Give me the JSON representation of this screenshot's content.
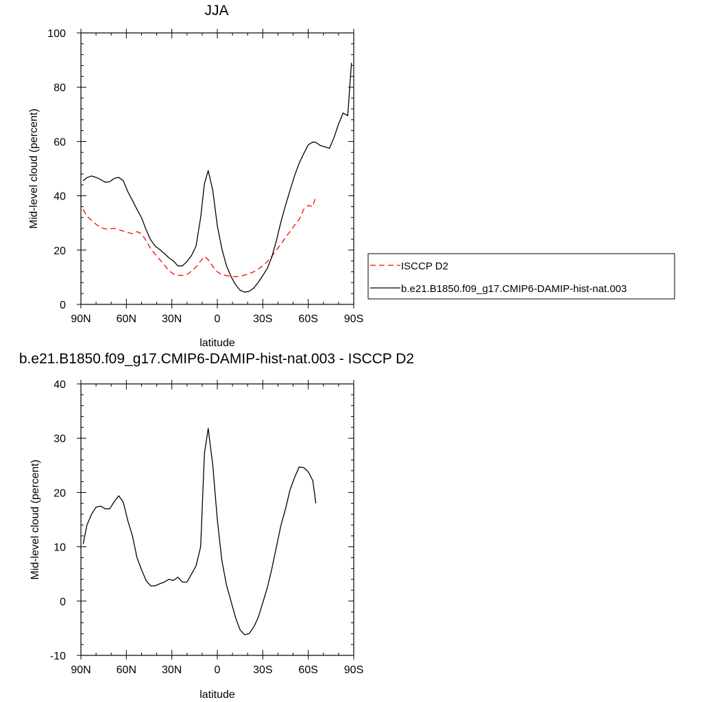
{
  "chart_data": [
    {
      "type": "line",
      "title": "JJA",
      "xlabel": "latitude",
      "ylabel": "Mid-level cloud (percent)",
      "xlim": [
        90,
        -90
      ],
      "ylim": [
        0,
        100
      ],
      "x_ticks": [
        90,
        60,
        30,
        0,
        -30,
        -60,
        -90
      ],
      "x_tick_labels": [
        "90N",
        "60N",
        "30N",
        "0",
        "30S",
        "60S",
        "90S"
      ],
      "y_ticks": [
        0,
        20,
        40,
        60,
        80,
        100
      ],
      "y_tick_labels": [
        "0",
        "20",
        "40",
        "60",
        "80",
        "100"
      ],
      "legend_position": "right",
      "series": [
        {
          "name": "ISCCP D2",
          "color": "#ff0000",
          "dash": "dashed",
          "x": [
            88.5,
            86,
            83,
            80,
            77,
            74,
            71,
            68,
            65,
            62,
            59,
            56,
            53,
            50,
            47,
            44,
            41,
            38,
            35,
            32,
            29,
            26,
            23,
            20,
            17,
            14,
            11,
            8.5,
            6,
            3,
            0,
            -3,
            -6,
            -9,
            -12,
            -15,
            -18,
            -21,
            -24,
            -27,
            -30,
            -33,
            -36,
            -39,
            -42,
            -45,
            -48,
            -51,
            -54,
            -57,
            -60,
            -63,
            -65
          ],
          "y": [
            35,
            32.5,
            31,
            29.5,
            28.3,
            27.8,
            27.8,
            28,
            27.5,
            27,
            26.5,
            26,
            26.8,
            26,
            23.5,
            20.5,
            18.5,
            16.5,
            14.5,
            12.5,
            11.2,
            10.7,
            10.7,
            11,
            12.2,
            13.8,
            16,
            17.7,
            16.5,
            14,
            12,
            11,
            10.6,
            10.3,
            10.2,
            10.4,
            10.8,
            11.3,
            12,
            13,
            14.2,
            15.8,
            17.8,
            20,
            22.2,
            24.7,
            26.8,
            29.2,
            31.3,
            35,
            36.5,
            36,
            40
          ]
        },
        {
          "name": "b.e21.B1850.f09_g17.CMIP6-DAMIP-hist-nat.003",
          "color": "#000000",
          "dash": "solid",
          "x": [
            88.5,
            86,
            83,
            80,
            77,
            74,
            71,
            68,
            65,
            62,
            59,
            56,
            53,
            50,
            47,
            44,
            41,
            38,
            35,
            32,
            29,
            26,
            23,
            20,
            17,
            14,
            11,
            8.5,
            6,
            3,
            0,
            -3,
            -6,
            -9,
            -12,
            -15,
            -18,
            -21,
            -24,
            -27,
            -30,
            -33,
            -36,
            -39,
            -42,
            -45,
            -48,
            -51,
            -54,
            -57,
            -60,
            -63,
            -65,
            -68,
            -71,
            -74,
            -77,
            -80,
            -83,
            -86,
            -88.5
          ],
          "y": [
            45.5,
            46.7,
            47.3,
            46.8,
            46,
            45,
            45.2,
            46.4,
            46.8,
            45.5,
            41.5,
            38.3,
            35,
            32,
            27.5,
            23.8,
            21.5,
            20.2,
            18.8,
            17.2,
            16,
            14.2,
            14.2,
            15.8,
            18,
            21.5,
            32,
            44.5,
            49.3,
            42,
            29,
            20.5,
            14.3,
            10.3,
            7.3,
            5.2,
            4.5,
            4.8,
            6,
            8.1,
            10.6,
            13.3,
            17.5,
            23.5,
            30.5,
            36.5,
            42,
            47.5,
            52,
            55.5,
            58.8,
            59.8,
            59.7,
            58.5,
            58,
            57.5,
            61.5,
            66.5,
            70.5,
            69.5,
            89
          ]
        }
      ]
    },
    {
      "type": "line",
      "title": "b.e21.B1850.f09_g17.CMIP6-DAMIP-hist-nat.003 - ISCCP D2",
      "xlabel": "latitude",
      "ylabel": "Mid-level cloud (percent)",
      "xlim": [
        90,
        -90
      ],
      "ylim": [
        -10,
        40
      ],
      "x_ticks": [
        90,
        60,
        30,
        0,
        -30,
        -60,
        -90
      ],
      "x_tick_labels": [
        "90N",
        "60N",
        "30N",
        "0",
        "30S",
        "60S",
        "90S"
      ],
      "y_ticks": [
        -10,
        0,
        10,
        20,
        30,
        40
      ],
      "y_tick_labels": [
        "-10",
        "0",
        "10",
        "20",
        "30",
        "40"
      ],
      "series": [
        {
          "color": "#000000",
          "dash": "solid",
          "x": [
            88.5,
            86,
            83,
            80,
            77,
            74,
            71,
            68,
            65,
            62,
            59,
            56,
            53,
            50,
            47,
            44,
            41,
            38,
            35,
            32,
            29,
            26,
            23,
            20,
            17,
            14,
            11,
            8.5,
            6,
            3,
            0,
            -3,
            -6,
            -9,
            -12,
            -15,
            -18,
            -21,
            -24,
            -27,
            -30,
            -33,
            -36,
            -39,
            -42,
            -45,
            -48,
            -51,
            -54,
            -57,
            -60,
            -63,
            -65
          ],
          "y": [
            10.5,
            14,
            16,
            17.3,
            17.5,
            17,
            17,
            18.3,
            19.4,
            18.2,
            14.8,
            12,
            8,
            5.8,
            3.8,
            2.8,
            2.8,
            3.2,
            3.5,
            4,
            3.8,
            4.4,
            3.5,
            3.5,
            5,
            6.5,
            10,
            27.2,
            31.8,
            25,
            15,
            7.5,
            3,
            0,
            -3,
            -5.3,
            -6.2,
            -6,
            -4.8,
            -3,
            -0.3,
            2.5,
            6,
            10,
            14,
            17,
            20.5,
            22.8,
            24.7,
            24.6,
            23.8,
            22.2,
            18
          ]
        }
      ]
    }
  ]
}
